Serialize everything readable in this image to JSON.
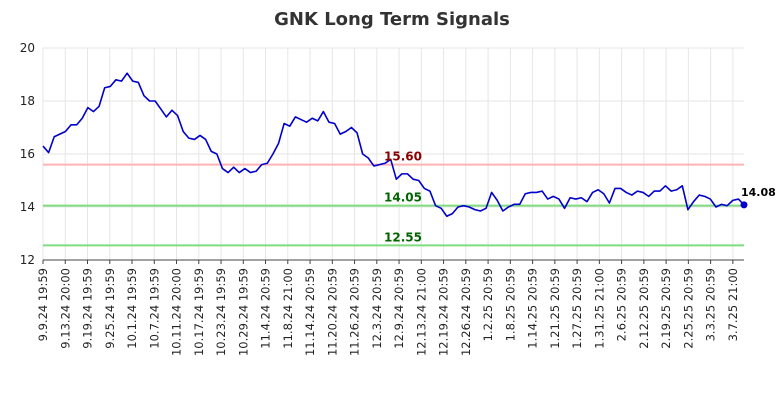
{
  "chart_data": {
    "type": "line",
    "title": "GNK Long Term Signals",
    "ylim": [
      12,
      20
    ],
    "y_ticks": [
      12,
      14,
      16,
      18,
      20
    ],
    "grid": true,
    "x_tick_labels": [
      "9.9.24 19:59",
      "9.13.24 20:00",
      "9.19.24 19:59",
      "9.25.24 19:59",
      "10.1.24 19:59",
      "10.7.24 19:59",
      "10.11.24 20:00",
      "10.17.24 19:59",
      "10.23.24 19:59",
      "10.29.24 19:59",
      "11.4.24 20:59",
      "11.8.24 21:00",
      "11.14.24 20:59",
      "11.20.24 20:59",
      "11.26.24 20:59",
      "12.3.24 20:59",
      "12.9.24 20:59",
      "12.13.24 21:00",
      "12.19.24 20:59",
      "12.26.24 20:59",
      "1.2.25 20:59",
      "1.8.25 20:59",
      "1.14.25 20:59",
      "1.21.25 20:59",
      "1.27.25 20:59",
      "1.31.25 21:00",
      "2.6.25 20:59",
      "2.12.25 20:59",
      "2.19.25 20:59",
      "2.25.25 20:59",
      "3.3.25 20:59",
      "3.7.25 21:00"
    ],
    "series": [
      {
        "color": "#0000cc",
        "values": [
          16.3,
          16.05,
          16.65,
          16.75,
          16.85,
          17.1,
          17.1,
          17.35,
          17.75,
          17.6,
          17.8,
          18.5,
          18.55,
          18.8,
          18.75,
          19.05,
          18.75,
          18.7,
          18.2,
          18.0,
          18.0,
          17.7,
          17.4,
          17.65,
          17.45,
          16.85,
          16.6,
          16.55,
          16.7,
          16.55,
          16.1,
          16.0,
          15.45,
          15.3,
          15.5,
          15.3,
          15.45,
          15.3,
          15.35,
          15.6,
          15.65,
          16.0,
          16.4,
          17.15,
          17.05,
          17.4,
          17.3,
          17.2,
          17.35,
          17.25,
          17.6,
          17.2,
          17.15,
          16.75,
          16.85,
          17.0,
          16.8,
          16.0,
          15.85,
          15.55,
          15.6,
          15.65,
          15.8,
          15.05,
          15.25,
          15.25,
          15.05,
          15.0,
          14.7,
          14.6,
          14.05,
          13.95,
          13.65,
          13.75,
          14.0,
          14.05,
          14.0,
          13.9,
          13.85,
          13.95,
          14.55,
          14.25,
          13.85,
          14.0,
          14.1,
          14.1,
          14.5,
          14.55,
          14.55,
          14.6,
          14.3,
          14.4,
          14.3,
          13.95,
          14.35,
          14.3,
          14.35,
          14.2,
          14.55,
          14.65,
          14.5,
          14.15,
          14.7,
          14.7,
          14.55,
          14.45,
          14.6,
          14.55,
          14.4,
          14.6,
          14.6,
          14.8,
          14.6,
          14.65,
          14.8,
          13.9,
          14.2,
          14.45,
          14.4,
          14.3,
          14.0,
          14.1,
          14.05,
          14.25,
          14.3,
          14.08
        ]
      }
    ],
    "reference_lines": [
      {
        "value": 15.6,
        "label": "15.60",
        "line_color": "#ffb3b3",
        "label_color": "#8b0000"
      },
      {
        "value": 14.05,
        "label": "14.05",
        "line_color": "#7fdc7f",
        "label_color": "#006400"
      },
      {
        "value": 12.55,
        "label": "12.55",
        "line_color": "#7fdc7f",
        "label_color": "#006400"
      }
    ],
    "last_value_label": "14.08"
  }
}
